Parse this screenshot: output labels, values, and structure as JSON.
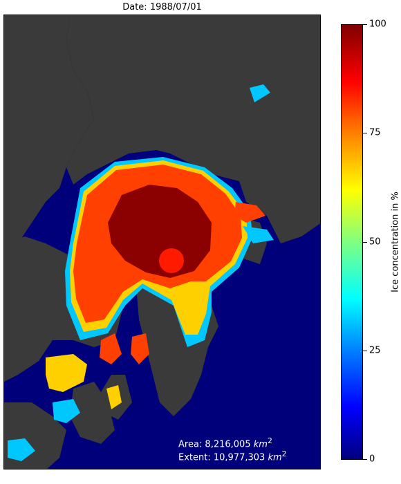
{
  "title": "Date: 1988/07/01",
  "stats": {
    "area_label": "Area: 8,216,005",
    "extent_label": "Extent: 10,977,303",
    "unit": "km",
    "unit_exp": "2"
  },
  "colorbar": {
    "label": "Ice concentration in %",
    "range": [
      0,
      100
    ],
    "ticks": [
      "0",
      "25",
      "50",
      "75",
      "100"
    ]
  },
  "colors": {
    "ocean": "#00007a",
    "land": "#3a3a3a",
    "ice_high": "#8b0000",
    "ice_mid": "#ff4000",
    "ice_edge": "#ffd000",
    "ice_low": "#00c8ff"
  }
}
